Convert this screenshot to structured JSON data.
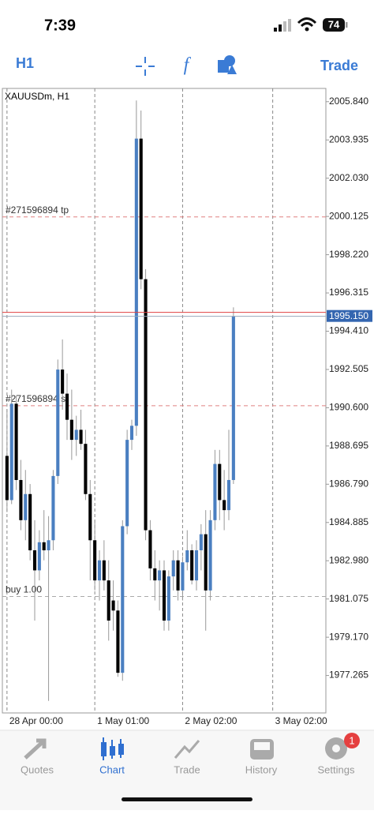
{
  "status_bar": {
    "time": "7:39",
    "battery": "74"
  },
  "toolbar": {
    "timeframe": "H1",
    "trade": "Trade"
  },
  "chart_data": {
    "type": "candlestick",
    "title": "XAUUSDm, H1",
    "bull_color": "#4a7fc1",
    "bear_color": "#000000",
    "open": [
      1988.2,
      1986.0,
      1990.8,
      1987.0,
      1985.0,
      1986.3,
      1983.5,
      1982.5,
      1983.9,
      1983.5,
      1984.0,
      1987.2,
      1992.5,
      1991.3,
      1990.0,
      1989.0,
      1989.5,
      1988.8,
      1986.3,
      1984.0,
      1982.0,
      1983.0,
      1982.0,
      1981.0,
      1980.5,
      1977.4,
      1984.7,
      1989.0,
      1989.7,
      2004.0,
      1997.0,
      1984.5,
      1982.6,
      1982.0,
      1982.5,
      1980.0,
      1982.2,
      1983.0,
      1981.5,
      1982.9,
      1983.5,
      1982.0,
      1983.5,
      1984.3,
      1981.5,
      1985.0,
      1987.8,
      1986.0,
      1985.5,
      1987.0
    ],
    "high": [
      1990.5,
      1991.5,
      1991.2,
      1988.0,
      1987.5,
      1986.8,
      1985.0,
      1984.5,
      1985.5,
      1985.2,
      1987.5,
      1993.0,
      1994.0,
      1992.3,
      1991.5,
      1990.2,
      1990.5,
      1989.5,
      1987.0,
      1985.0,
      1983.5,
      1984.0,
      1983.0,
      1982.0,
      1981.0,
      1985.0,
      1989.5,
      1990.0,
      2005.9,
      2005.4,
      1997.5,
      1985.0,
      1983.5,
      1983.0,
      1983.0,
      1982.5,
      1983.5,
      1983.5,
      1983.2,
      1984.5,
      1983.8,
      1984.0,
      1984.8,
      1985.5,
      1985.5,
      1988.5,
      1988.5,
      1987.5,
      1989.5,
      1995.6
    ],
    "low": [
      1985.4,
      1985.8,
      1986.5,
      1984.5,
      1984.0,
      1983.0,
      1980.0,
      1982.0,
      1983.0,
      1976.0,
      1983.5,
      1986.8,
      1990.5,
      1989.0,
      1988.0,
      1988.2,
      1988.5,
      1986.0,
      1982.0,
      1981.5,
      1981.0,
      1981.5,
      1979.0,
      1979.5,
      1977.2,
      1977.0,
      1984.3,
      1988.5,
      1989.2,
      1996.5,
      1984.0,
      1982.0,
      1981.0,
      1980.5,
      1979.5,
      1979.5,
      1981.5,
      1981.0,
      1981.0,
      1982.5,
      1981.8,
      1981.5,
      1982.5,
      1979.5,
      1981.0,
      1984.5,
      1985.0,
      1984.5,
      1985.0,
      1986.8
    ],
    "close": [
      1986.0,
      1990.8,
      1987.0,
      1985.0,
      1986.3,
      1983.5,
      1982.5,
      1983.9,
      1983.5,
      1984.0,
      1987.2,
      1992.5,
      1991.3,
      1990.0,
      1989.0,
      1989.5,
      1988.8,
      1986.3,
      1984.0,
      1982.0,
      1983.0,
      1982.0,
      1980.0,
      1980.5,
      1977.4,
      1984.7,
      1989.0,
      1989.7,
      2004.0,
      1997.0,
      1984.5,
      1982.6,
      1982.0,
      1982.5,
      1980.0,
      1982.2,
      1983.0,
      1981.5,
      1982.9,
      1983.5,
      1982.0,
      1983.5,
      1984.3,
      1981.5,
      1985.0,
      1987.8,
      1986.0,
      1985.5,
      1987.0,
      1995.15
    ],
    "xlim": [
      -1,
      69
    ],
    "xticks": [
      {
        "value": 0,
        "label": "28 Apr 00:00"
      },
      {
        "value": 19,
        "label": "1 May 01:00"
      },
      {
        "value": 38,
        "label": "2 May 02:00"
      },
      {
        "value": 57.5,
        "label": "3 May 02:00"
      }
    ],
    "ylim": [
      1975.4,
      2006.5
    ],
    "yticks": [
      {
        "value": 1977.265,
        "label": "1977.265"
      },
      {
        "value": 1979.17,
        "label": "1979.170"
      },
      {
        "value": 1981.075,
        "label": "1981.075"
      },
      {
        "value": 1982.98,
        "label": "1982.980"
      },
      {
        "value": 1984.885,
        "label": "1984.885"
      },
      {
        "value": 1986.79,
        "label": "1986.790"
      },
      {
        "value": 1988.695,
        "label": "1988.695"
      },
      {
        "value": 1990.6,
        "label": "1990.600"
      },
      {
        "value": 1992.505,
        "label": "1992.505"
      },
      {
        "value": 1994.41,
        "label": "1994.410"
      },
      {
        "value": 1996.315,
        "label": "1996.315"
      },
      {
        "value": 1998.22,
        "label": "1998.220"
      },
      {
        "value": 2000.125,
        "label": "2000.125"
      },
      {
        "value": 2002.03,
        "label": "2002.030"
      },
      {
        "value": 2003.935,
        "label": "2003.935"
      },
      {
        "value": 2005.84,
        "label": "2005.840"
      }
    ],
    "levels": [
      {
        "label": "#271596894 tp",
        "value": 2000.1,
        "color": "#e08080"
      },
      {
        "label": "#271596894 sl",
        "value": 1990.7,
        "color": "#e08080"
      },
      {
        "label": "buy 1.00",
        "value": 1981.2,
        "color": "#aaaaaa"
      }
    ],
    "price": {
      "value": 1995.15,
      "label": "1995.150",
      "color": "#3466b0",
      "ask": 1995.35,
      "ask_color": "#e04040"
    }
  },
  "tabs": [
    {
      "label": "Quotes"
    },
    {
      "label": "Chart"
    },
    {
      "label": "Trade"
    },
    {
      "label": "History"
    },
    {
      "label": "Settings",
      "badge": "1"
    }
  ]
}
